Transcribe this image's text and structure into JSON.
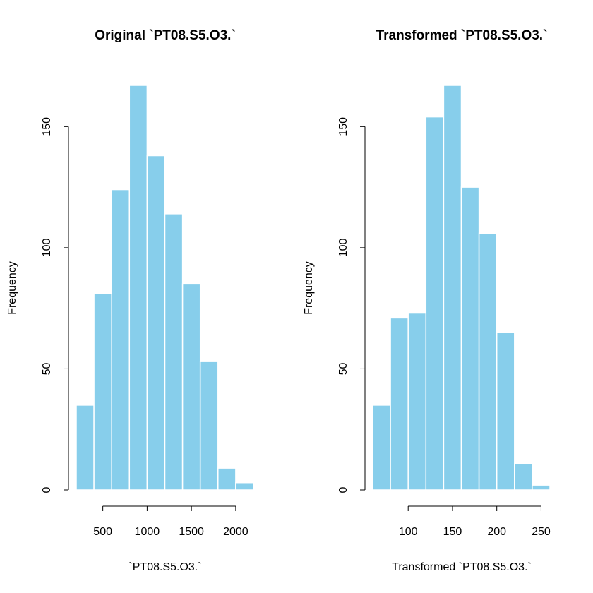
{
  "colors": {
    "bar_fill": "#87ceeb",
    "bar_stroke": "#ffffff",
    "axis": "#000000"
  },
  "chart_data": [
    {
      "type": "bar",
      "title": "Original `PT08.S5.O3.`",
      "xlabel": "`PT08.S5.O3.`",
      "ylabel": "Frequency",
      "bin_edges": [
        200,
        400,
        600,
        800,
        1000,
        1200,
        1400,
        1600,
        1800,
        2000,
        2200
      ],
      "values": [
        35,
        81,
        124,
        167,
        138,
        114,
        85,
        53,
        9,
        3
      ],
      "xlim": [
        200,
        2200
      ],
      "ylim": [
        0,
        167
      ],
      "xticks": [
        500,
        1000,
        1500,
        2000
      ],
      "xtick_labels": [
        "500",
        "1000",
        "1500",
        "2000"
      ],
      "yticks": [
        0,
        50,
        100,
        150
      ],
      "ytick_labels": [
        "0",
        "50",
        "100",
        "150"
      ]
    },
    {
      "type": "bar",
      "title": "Transformed `PT08.S5.O3.`",
      "xlabel": "Transformed `PT08.S5.O3.`",
      "ylabel": "Frequency",
      "bin_edges": [
        60,
        80,
        100,
        120,
        140,
        160,
        180,
        200,
        220,
        240,
        260
      ],
      "values": [
        35,
        71,
        73,
        154,
        167,
        125,
        106,
        65,
        11,
        2
      ],
      "xlim": [
        60,
        260
      ],
      "ylim": [
        0,
        167
      ],
      "xticks": [
        100,
        150,
        200,
        250
      ],
      "xtick_labels": [
        "100",
        "150",
        "200",
        "250"
      ],
      "yticks": [
        0,
        50,
        100,
        150
      ],
      "ytick_labels": [
        "0",
        "50",
        "100",
        "150"
      ]
    }
  ]
}
